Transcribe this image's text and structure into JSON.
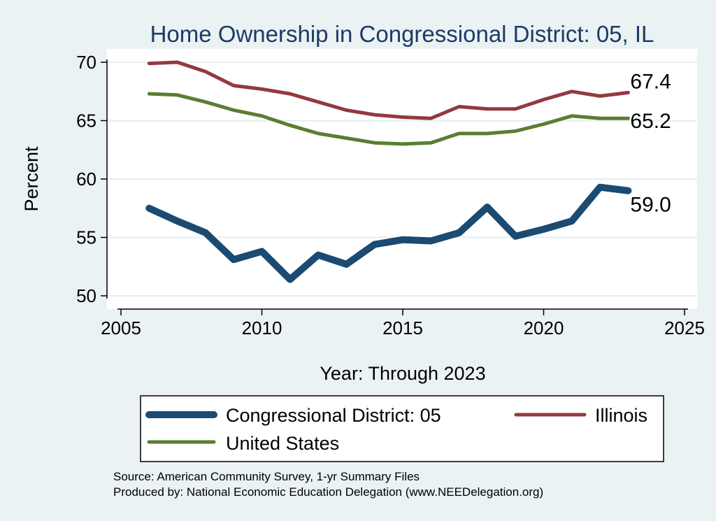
{
  "chart_data": {
    "type": "line",
    "title": "Home Ownership in Congressional District:  05, IL",
    "xlabel": "Year: Through 2023",
    "ylabel": "Percent",
    "xlim": [
      2005,
      2025
    ],
    "ylim": [
      50,
      70
    ],
    "xticks": [
      2005,
      2010,
      2015,
      2020,
      2025
    ],
    "yticks": [
      50,
      55,
      60,
      65,
      70
    ],
    "x": [
      2006,
      2007,
      2008,
      2009,
      2010,
      2011,
      2012,
      2013,
      2014,
      2015,
      2016,
      2017,
      2018,
      2019,
      2020,
      2021,
      2022,
      2023
    ],
    "series": [
      {
        "name": "Congressional District:  05",
        "color": "#1b4a72",
        "values": [
          57.5,
          56.4,
          55.4,
          53.1,
          53.8,
          51.4,
          53.5,
          52.7,
          54.4,
          54.8,
          54.7,
          55.4,
          57.6,
          55.1,
          55.7,
          56.4,
          59.3,
          59.0
        ],
        "end_label": "59.0"
      },
      {
        "name": "Illinois",
        "color": "#923a3f",
        "values": [
          69.9,
          70.0,
          69.2,
          68.0,
          67.7,
          67.3,
          66.6,
          65.9,
          65.5,
          65.3,
          65.2,
          66.2,
          66.0,
          66.0,
          66.8,
          67.5,
          67.1,
          67.4
        ],
        "end_label": "67.4"
      },
      {
        "name": "United States",
        "color": "#5a7e31",
        "values": [
          67.3,
          67.2,
          66.6,
          65.9,
          65.4,
          64.6,
          63.9,
          63.5,
          63.1,
          63.0,
          63.1,
          63.9,
          63.9,
          64.1,
          64.7,
          65.4,
          65.2,
          65.2
        ],
        "end_label": "65.2"
      }
    ],
    "legend": {
      "position": "bottom",
      "entries": [
        "Congressional District:  05",
        "Illinois",
        "United States"
      ]
    },
    "grid": true
  },
  "footer": {
    "source": "Source: American Community Survey, 1-yr Summary Files",
    "produced_by": "Produced by: National Economic Education Delegation (www.NEEDelegation.org)"
  },
  "colors": {
    "background": "#eaf2f3",
    "plot_background": "#ffffff",
    "title": "#1d3a66",
    "gridline": "#e6eef0"
  }
}
